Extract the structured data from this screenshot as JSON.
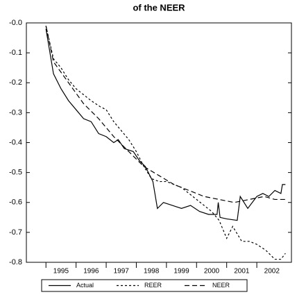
{
  "chart_data": {
    "type": "line",
    "title": "of the NEER",
    "xlim": [
      1994.35,
      2003.15
    ],
    "xticks": [
      1995,
      1996,
      1997,
      1998,
      1999,
      2000,
      2001,
      2002
    ],
    "ylim": [
      -0.8,
      0
    ],
    "yticks": [
      {
        "value": 0,
        "label": "-0.0"
      },
      -0.1,
      -0.2,
      -0.3,
      -0.4,
      -0.5,
      -0.6,
      -0.7,
      -0.8
    ],
    "grid": false,
    "legend": "bottom",
    "series": [
      {
        "name": "Actual",
        "color": "#000000",
        "dash": "solid",
        "x": [
          1995.0,
          1995.1,
          1995.25,
          1995.5,
          1995.75,
          1996.0,
          1996.25,
          1996.5,
          1996.75,
          1997.0,
          1997.25,
          1997.4,
          1997.6,
          1997.9,
          1998.1,
          1998.3,
          1998.55,
          1998.7,
          1998.9,
          1999.2,
          1999.5,
          1999.8,
          2000.1,
          2000.4,
          2000.68,
          2000.72,
          2000.78,
          2001.0,
          2001.35,
          2001.45,
          2001.7,
          2002.0,
          2002.2,
          2002.4,
          2002.6,
          2002.8,
          2002.85,
          2002.95
        ],
        "values": [
          -0.02,
          -0.08,
          -0.17,
          -0.22,
          -0.26,
          -0.29,
          -0.32,
          -0.33,
          -0.37,
          -0.38,
          -0.4,
          -0.39,
          -0.42,
          -0.43,
          -0.46,
          -0.48,
          -0.53,
          -0.62,
          -0.6,
          -0.61,
          -0.62,
          -0.61,
          -0.63,
          -0.64,
          -0.64,
          -0.6,
          -0.65,
          -0.655,
          -0.66,
          -0.58,
          -0.62,
          -0.58,
          -0.57,
          -0.58,
          -0.56,
          -0.57,
          -0.54,
          -0.54
        ]
      },
      {
        "name": "REER",
        "color": "#000000",
        "dash": "short",
        "x": [
          1995.0,
          1995.25,
          1995.5,
          1995.75,
          1996.0,
          1996.25,
          1996.5,
          1996.8,
          1997.0,
          1997.25,
          1997.5,
          1997.75,
          1998.0,
          1998.25,
          1998.5,
          1998.75,
          1999.0,
          1999.5,
          2000.0,
          2000.5,
          2000.75,
          2001.0,
          2001.2,
          2001.5,
          2001.75,
          2002.0,
          2002.3,
          2002.6,
          2002.8,
          2002.95
        ],
        "values": [
          -0.01,
          -0.12,
          -0.15,
          -0.19,
          -0.22,
          -0.24,
          -0.26,
          -0.28,
          -0.29,
          -0.33,
          -0.36,
          -0.39,
          -0.43,
          -0.48,
          -0.52,
          -0.53,
          -0.53,
          -0.55,
          -0.59,
          -0.63,
          -0.66,
          -0.72,
          -0.68,
          -0.73,
          -0.73,
          -0.74,
          -0.76,
          -0.79,
          -0.79,
          -0.77
        ]
      },
      {
        "name": "NEER",
        "color": "#000000",
        "dash": "long",
        "x": [
          1995.0,
          1995.25,
          1995.75,
          1996.25,
          1996.75,
          1997.25,
          1997.75,
          1998.25,
          1998.75,
          1999.25,
          1999.75,
          2000.25,
          2000.75,
          2001.25,
          2001.75,
          2002.25,
          2002.6,
          2002.95
        ],
        "values": [
          -0.01,
          -0.13,
          -0.2,
          -0.27,
          -0.32,
          -0.38,
          -0.43,
          -0.48,
          -0.51,
          -0.54,
          -0.56,
          -0.58,
          -0.59,
          -0.6,
          -0.59,
          -0.58,
          -0.59,
          -0.59
        ]
      }
    ]
  }
}
